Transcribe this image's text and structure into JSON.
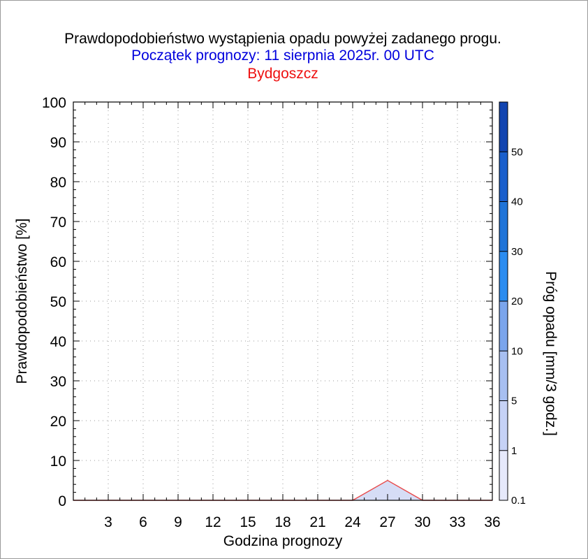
{
  "chart_data": {
    "type": "area",
    "title": "Prawdopodobieństwo wystąpienia opadu powyżej zadanego progu.",
    "subtitle": "Początek prognozy: 11 sierpnia 2025r. 00 UTC",
    "location": "Bydgoszcz",
    "xlabel": "Godzina prognozy",
    "ylabel": "Prawdopodobieństwo [%]",
    "xlim": [
      0,
      36
    ],
    "ylim": [
      0,
      100
    ],
    "x_ticks": [
      "3",
      "6",
      "9",
      "12",
      "15",
      "18",
      "21",
      "24",
      "27",
      "30",
      "33",
      "36"
    ],
    "y_ticks": [
      "0",
      "10",
      "20",
      "30",
      "40",
      "50",
      "60",
      "70",
      "80",
      "90",
      "100"
    ],
    "grid": true,
    "series": [
      {
        "name": "0.1",
        "x": [
          0,
          3,
          6,
          9,
          12,
          15,
          18,
          21,
          24,
          27,
          30,
          33,
          36
        ],
        "values": [
          0,
          0,
          0,
          0,
          0,
          0,
          0,
          0,
          0,
          5,
          0,
          0,
          0
        ]
      }
    ],
    "colorbar": {
      "label": "Próg opadu [mm/3 godz.]",
      "thresholds": [
        "0.1",
        "1",
        "5",
        "10",
        "20",
        "30",
        "40",
        "50"
      ],
      "colors": [
        "#e6e9fb",
        "#c6d2f6",
        "#a7bff1",
        "#7ba5ec",
        "#2b8cf0",
        "#1f74d8",
        "#1a5fcc",
        "#1144b0"
      ]
    },
    "colors": {
      "title": "#000000",
      "subtitle": "#0000dd",
      "location": "#ee1111",
      "line": "#e84a4a",
      "fill": "#d6ddf6",
      "grid": "#9a9a9a"
    }
  }
}
